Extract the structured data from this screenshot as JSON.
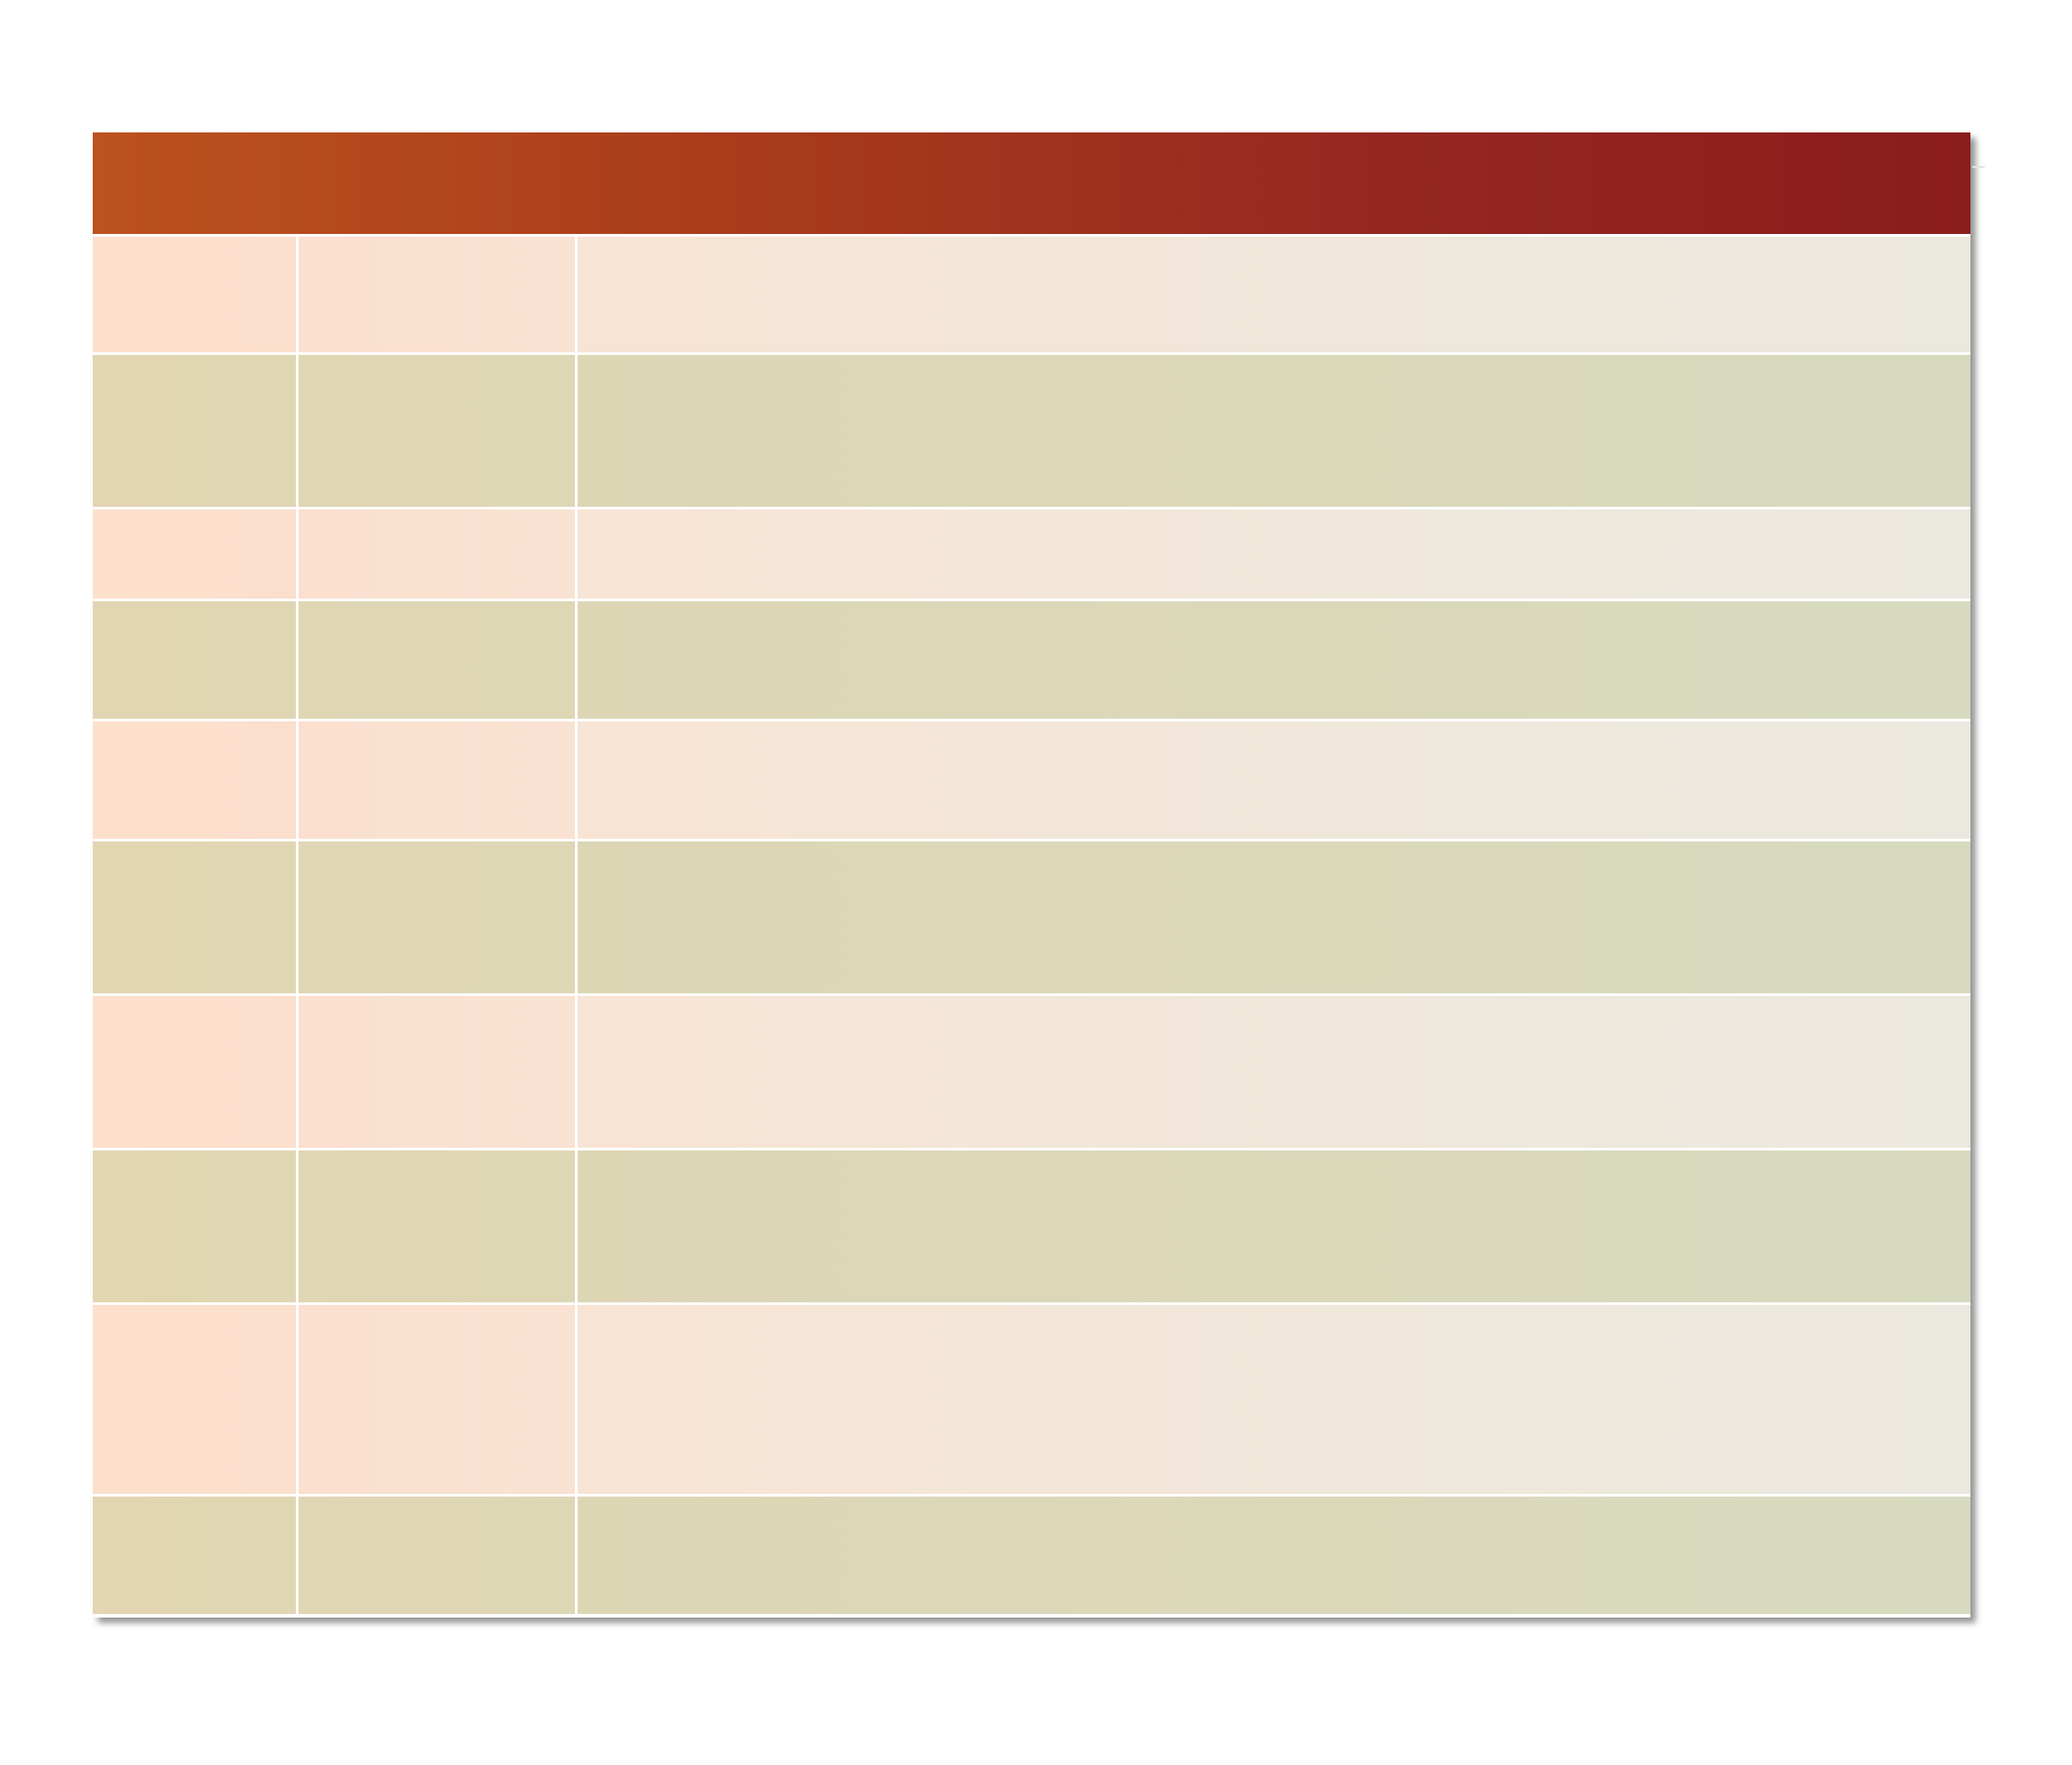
{
  "table": {
    "header_colors": [
      "#bc521d",
      "#8b1c1d"
    ],
    "row_colors": {
      "light": "#fbdfcd",
      "dark": "#dfd6b4"
    },
    "rows": [
      {
        "cells": [
          "",
          "",
          ""
        ]
      },
      {
        "cells": [
          "",
          "",
          ""
        ]
      },
      {
        "cells": [
          "",
          "",
          ""
        ]
      },
      {
        "cells": [
          "",
          "",
          ""
        ]
      },
      {
        "cells": [
          "",
          "",
          ""
        ]
      },
      {
        "cells": [
          "",
          "",
          ""
        ]
      },
      {
        "cells": [
          "",
          "",
          ""
        ]
      },
      {
        "cells": [
          "",
          "",
          ""
        ]
      },
      {
        "cells": [
          "",
          "",
          ""
        ]
      },
      {
        "cells": [
          "",
          "",
          ""
        ]
      }
    ]
  }
}
